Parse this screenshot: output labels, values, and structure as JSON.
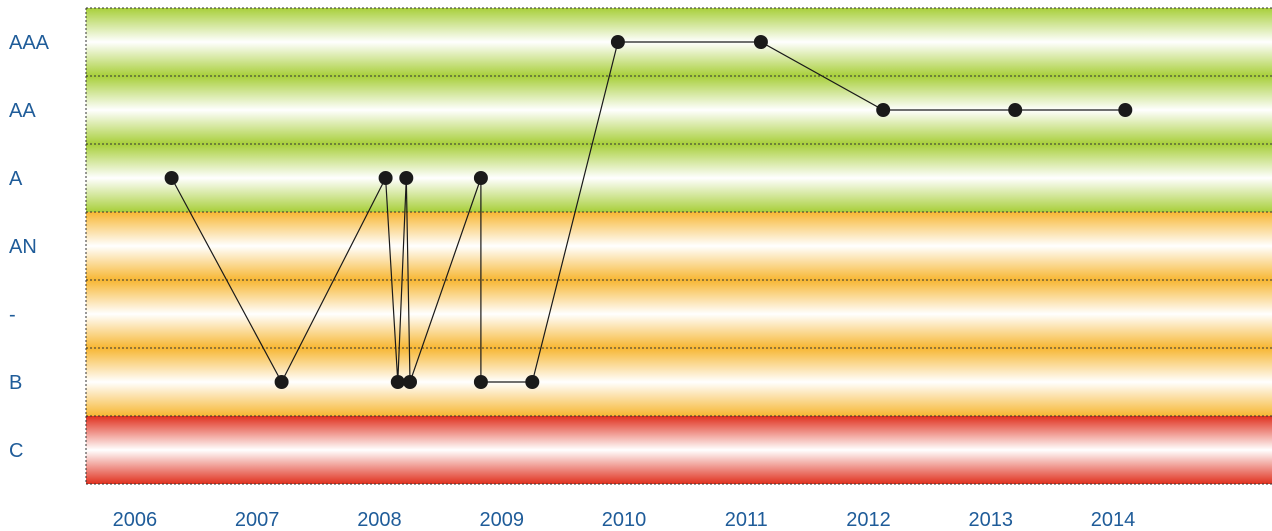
{
  "chart_data": {
    "type": "line",
    "categories": [
      "C",
      "B",
      "-",
      "AN",
      "A",
      "AA",
      "AAA"
    ],
    "x_ticks": [
      "2006",
      "2007",
      "2008",
      "2009",
      "2010",
      "2011",
      "2012",
      "2013",
      "2014"
    ],
    "xlim": [
      2005.6,
      2015.3
    ],
    "grid": true,
    "colors": {
      "axis_text": "#1f5c99",
      "line": "#1a1a1a",
      "marker": "#1a1a1a",
      "band_green": "#a8cf3a",
      "band_orange": "#f7b733",
      "band_red": "#e0301e"
    },
    "bands": [
      {
        "from": "C",
        "to": "C",
        "color": "red"
      },
      {
        "from": "B",
        "to": "AN",
        "color": "orange"
      },
      {
        "from": "A",
        "to": "AAA",
        "color": "green"
      }
    ],
    "series": [
      {
        "points": [
          {
            "x": 2006.3,
            "y": "A"
          },
          {
            "x": 2007.2,
            "y": "B"
          },
          {
            "x": 2008.05,
            "y": "A"
          },
          {
            "x": 2008.15,
            "y": "B"
          },
          {
            "x": 2008.22,
            "y": "A"
          },
          {
            "x": 2008.25,
            "y": "B"
          },
          {
            "x": 2008.83,
            "y": "A"
          },
          {
            "x": 2008.83,
            "y": "B"
          },
          {
            "x": 2009.25,
            "y": "B"
          },
          {
            "x": 2009.95,
            "y": "AAA"
          },
          {
            "x": 2011.12,
            "y": "AAA"
          },
          {
            "x": 2012.12,
            "y": "AA"
          },
          {
            "x": 2013.2,
            "y": "AA"
          },
          {
            "x": 2014.1,
            "y": "AA"
          }
        ]
      }
    ]
  }
}
